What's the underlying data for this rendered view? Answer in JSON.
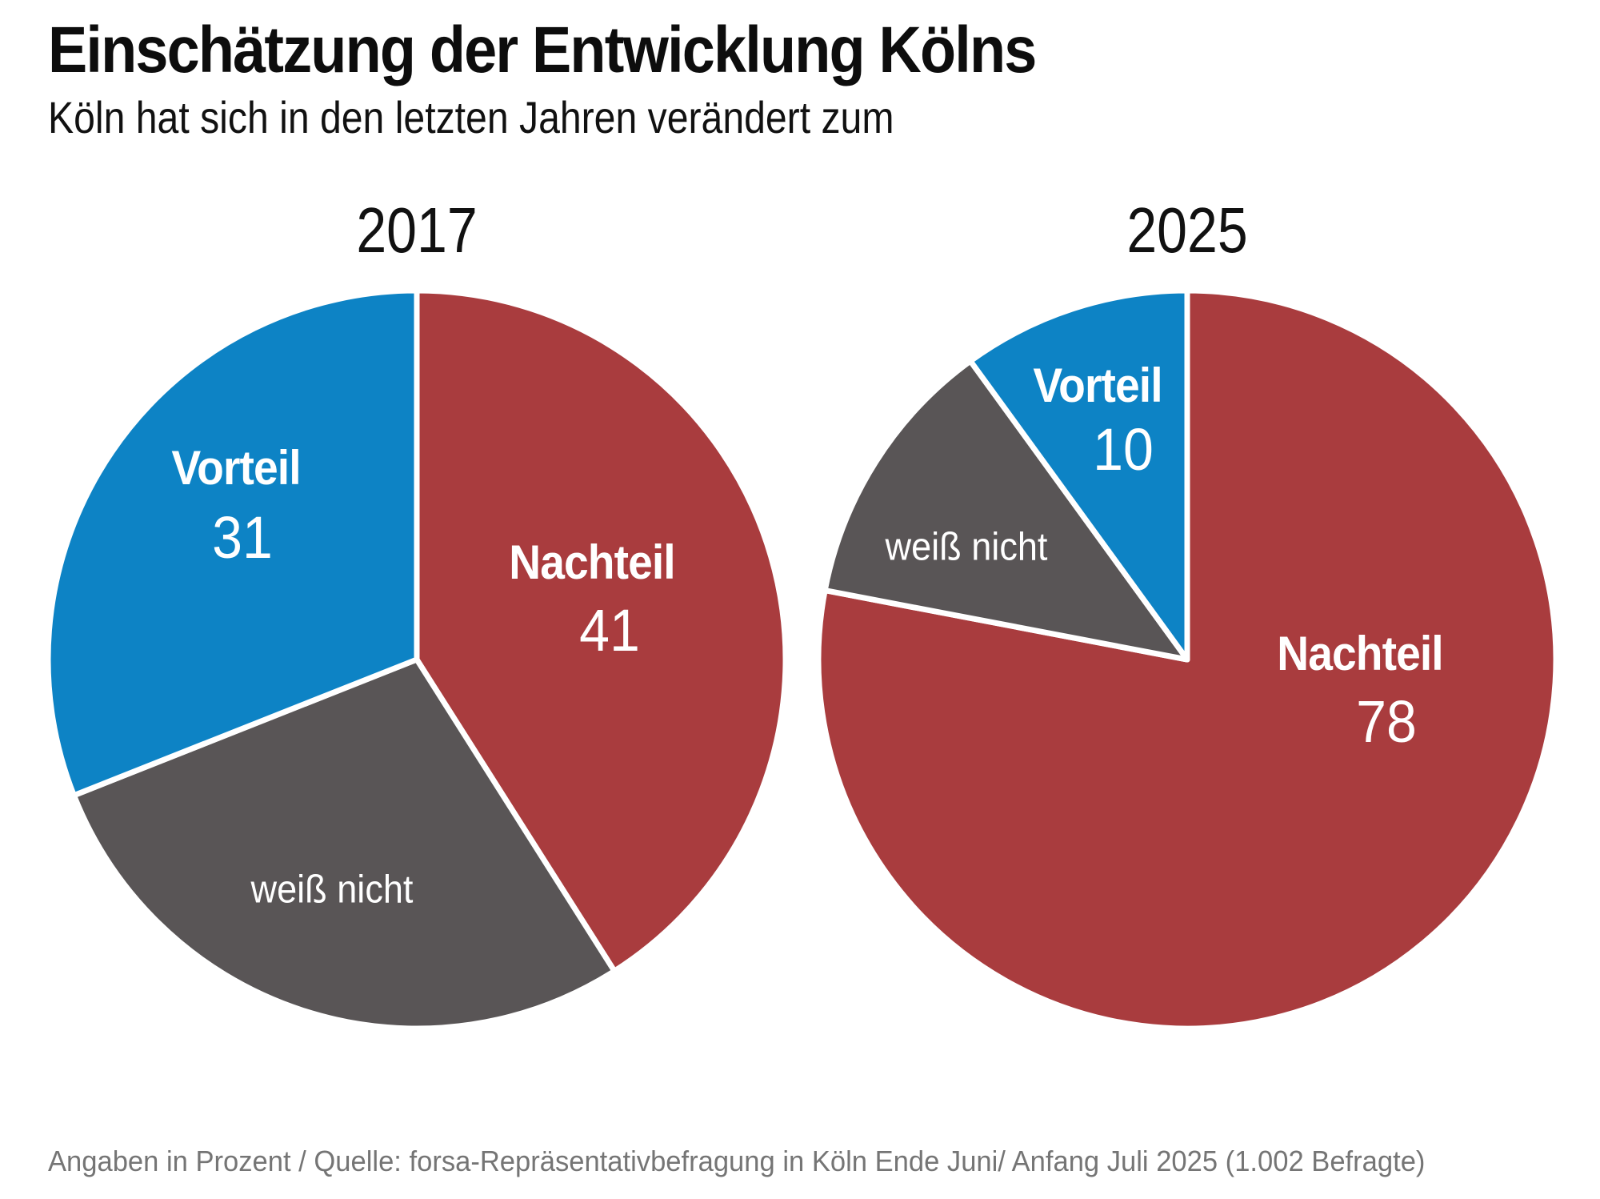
{
  "header": {
    "title": "Einschätzung der Entwicklung Kölns",
    "subtitle": "Köln hat sich in den letzten Jahren verändert zum"
  },
  "footer": {
    "note": "Angaben in Prozent / Quelle: forsa-Repräsentativbefragung in Köln Ende Juni/ Anfang Juli 2025 (1.002 Befragte)"
  },
  "colors": {
    "nachteil": "#a93c3e",
    "weiss_nicht": "#595556",
    "vorteil": "#0d83c5",
    "separator": "#ffffff",
    "text_on_slice": "#ffffff",
    "title_text": "#0d0d0d",
    "footer_text": "#757575"
  },
  "chart_data": [
    {
      "type": "pie",
      "title": "2017",
      "unit": "percent",
      "start_angle_deg": 0,
      "direction": "clockwise",
      "slices": [
        {
          "label": "Nachteil",
          "value": 41,
          "color_key": "nachteil",
          "show_value": true
        },
        {
          "label": "weiß nicht",
          "value": 28,
          "color_key": "weiss_nicht",
          "show_value": false
        },
        {
          "label": "Vorteil",
          "value": 31,
          "color_key": "vorteil",
          "show_value": true
        }
      ]
    },
    {
      "type": "pie",
      "title": "2025",
      "unit": "percent",
      "start_angle_deg": 0,
      "direction": "clockwise",
      "slices": [
        {
          "label": "Nachteil",
          "value": 78,
          "color_key": "nachteil",
          "show_value": true
        },
        {
          "label": "weiß nicht",
          "value": 12,
          "color_key": "weiss_nicht",
          "show_value": false
        },
        {
          "label": "Vorteil",
          "value": 10,
          "color_key": "vorteil",
          "show_value": true
        }
      ]
    }
  ]
}
